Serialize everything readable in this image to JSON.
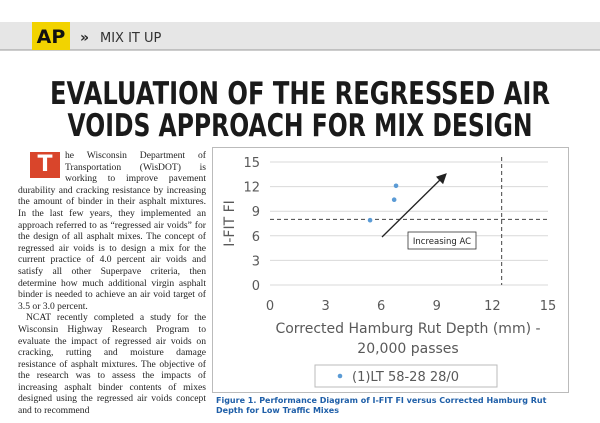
{
  "header": {
    "logo": "AP",
    "section": "MIX IT UP"
  },
  "title": [
    "EVALUATION OF THE REGRESSED AIR",
    "VOIDS APPROACH FOR MIX DESIGN"
  ],
  "body": {
    "drop_cap": "T",
    "paragraphs": [
      "he Wisconsin Department of Transportation (WisDOT) is working to improve pavement durability and cracking resistance by increasing the amount of binder in their asphalt mixtures. In the last few years, they implemented an approach referred to as “regressed air voids” for the design of all asphalt mixes. The concept of regressed air voids is to design a mix for the current practice of 4.0 percent air voids and satisfy all other Superpave criteria, then determine how much additional virgin asphalt binder is needed to achieve an air void target of 3.5 or 3.0 percent.",
      "NCAT recently completed a study for the Wisconsin Highway Research Program to evaluate the impact of regressed air voids on cracking, rutting and moisture damage resistance of asphalt mixtures. The objective of the research was to assess the impacts of increasing asphalt binder contents of mixes designed using the regressed air voids concept and to recommend"
    ]
  },
  "chart_data": {
    "type": "scatter",
    "xlabel": [
      "Corrected Hamburg Rut Depth (mm) -",
      "20,000 passes"
    ],
    "ylabel": "I-FIT FI",
    "x": [
      5.4,
      6.7,
      6.8
    ],
    "series": [
      {
        "name": "(1)LT 58-28 28/0",
        "color": "#5b9bd5",
        "values": [
          7.9,
          10.4,
          12.1
        ]
      }
    ],
    "xlim": [
      0,
      15
    ],
    "xticks": [
      0,
      3,
      6,
      9,
      12,
      15
    ],
    "ylim": [
      0,
      15
    ],
    "yticks": [
      0,
      3,
      6,
      9,
      12,
      15
    ],
    "grid": true,
    "reference_lines": {
      "x": [
        12.5
      ],
      "y": [
        8
      ]
    },
    "annotation": "Increasing AC",
    "legend": "bottom"
  },
  "caption": {
    "label": "Figure 1.",
    "text": "Performance Diagram of I-FIT FI versus Corrected Hamburg Rut Depth for Low Traffic Mixes"
  }
}
